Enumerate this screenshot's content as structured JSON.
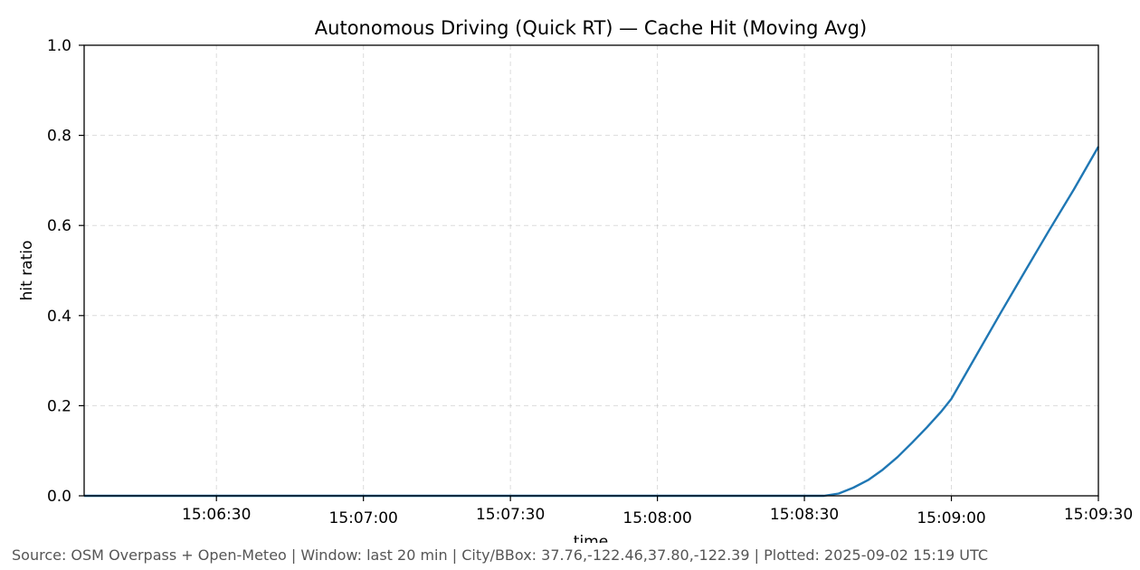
{
  "chart_data": {
    "type": "line",
    "title": "Autonomous Driving (Quick RT) — Cache Hit (Moving Avg)",
    "xlabel": "time",
    "ylabel": "hit ratio",
    "x_ticks": [
      "15:06:30",
      "15:07:00",
      "15:07:30",
      "15:08:00",
      "15:08:30",
      "15:09:00",
      "15:09:30"
    ],
    "y_ticks": [
      "0.0",
      "0.2",
      "0.4",
      "0.6",
      "0.8",
      "1.0"
    ],
    "ylim": [
      0,
      1
    ],
    "xlim": [
      "15:06:03",
      "15:09:30"
    ],
    "grid": true,
    "line_color": "#1f77b4",
    "series": [
      {
        "x": [
          "15:06:03",
          "15:06:30",
          "15:07:00",
          "15:07:30",
          "15:08:00",
          "15:08:30",
          "15:08:34",
          "15:08:37",
          "15:08:40",
          "15:08:43",
          "15:08:46",
          "15:08:49",
          "15:08:52",
          "15:08:55",
          "15:08:58",
          "15:09:00",
          "15:09:05",
          "15:09:10",
          "15:09:15",
          "15:09:20",
          "15:09:25",
          "15:09:30"
        ],
        "values": [
          0,
          0,
          0,
          0,
          0,
          0,
          0.0,
          0.005,
          0.018,
          0.035,
          0.058,
          0.086,
          0.118,
          0.152,
          0.188,
          0.215,
          0.31,
          0.405,
          0.498,
          0.59,
          0.68,
          0.775
        ]
      }
    ]
  },
  "footer": "Source: OSM Overpass + Open-Meteo | Window: last 20 min | City/BBox: 37.76,-122.46,37.80,-122.39 | Plotted: 2025-09-02 15:19 UTC"
}
